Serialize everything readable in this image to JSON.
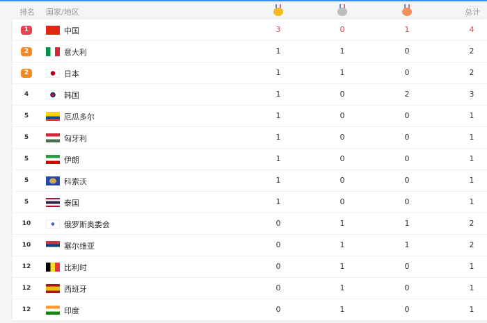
{
  "header": {
    "rank": "排名",
    "country": "国家/地区",
    "gold_icon": "gold-medal-icon",
    "silver_icon": "silver-medal-icon",
    "bronze_icon": "bronze-medal-icon",
    "total": "总计"
  },
  "colors": {
    "accent": "#3a8ee6",
    "rank1": "#e8424a",
    "rank2": "#f08a24",
    "gold": "#f5b820",
    "silver": "#b8b8b8",
    "bronze": "#f0925a"
  },
  "rows": [
    {
      "rank": "1",
      "country": "中国",
      "flag": "china-flag-icon",
      "gold": "3",
      "silver": "0",
      "bronze": "1",
      "total": "4"
    },
    {
      "rank": "2",
      "country": "意大利",
      "flag": "italy-flag-icon",
      "gold": "1",
      "silver": "1",
      "bronze": "0",
      "total": "2"
    },
    {
      "rank": "2",
      "country": "日本",
      "flag": "japan-flag-icon",
      "gold": "1",
      "silver": "1",
      "bronze": "0",
      "total": "2"
    },
    {
      "rank": "4",
      "country": "韩国",
      "flag": "korea-flag-icon",
      "gold": "1",
      "silver": "0",
      "bronze": "2",
      "total": "3"
    },
    {
      "rank": "5",
      "country": "厄瓜多尔",
      "flag": "ecuador-flag-icon",
      "gold": "1",
      "silver": "0",
      "bronze": "0",
      "total": "1"
    },
    {
      "rank": "5",
      "country": "匈牙利",
      "flag": "hungary-flag-icon",
      "gold": "1",
      "silver": "0",
      "bronze": "0",
      "total": "1"
    },
    {
      "rank": "5",
      "country": "伊朗",
      "flag": "iran-flag-icon",
      "gold": "1",
      "silver": "0",
      "bronze": "0",
      "total": "1"
    },
    {
      "rank": "5",
      "country": "科索沃",
      "flag": "kosovo-flag-icon",
      "gold": "1",
      "silver": "0",
      "bronze": "0",
      "total": "1"
    },
    {
      "rank": "5",
      "country": "泰国",
      "flag": "thailand-flag-icon",
      "gold": "1",
      "silver": "0",
      "bronze": "0",
      "total": "1"
    },
    {
      "rank": "10",
      "country": "俄罗斯奥委会",
      "flag": "roc-flag-icon",
      "gold": "0",
      "silver": "1",
      "bronze": "1",
      "total": "2"
    },
    {
      "rank": "10",
      "country": "塞尔维亚",
      "flag": "serbia-flag-icon",
      "gold": "0",
      "silver": "1",
      "bronze": "1",
      "total": "2"
    },
    {
      "rank": "12",
      "country": "比利时",
      "flag": "belgium-flag-icon",
      "gold": "0",
      "silver": "1",
      "bronze": "0",
      "total": "1"
    },
    {
      "rank": "12",
      "country": "西班牙",
      "flag": "spain-flag-icon",
      "gold": "0",
      "silver": "1",
      "bronze": "0",
      "total": "1"
    },
    {
      "rank": "12",
      "country": "印度",
      "flag": "india-flag-icon",
      "gold": "0",
      "silver": "1",
      "bronze": "0",
      "total": "1"
    }
  ]
}
